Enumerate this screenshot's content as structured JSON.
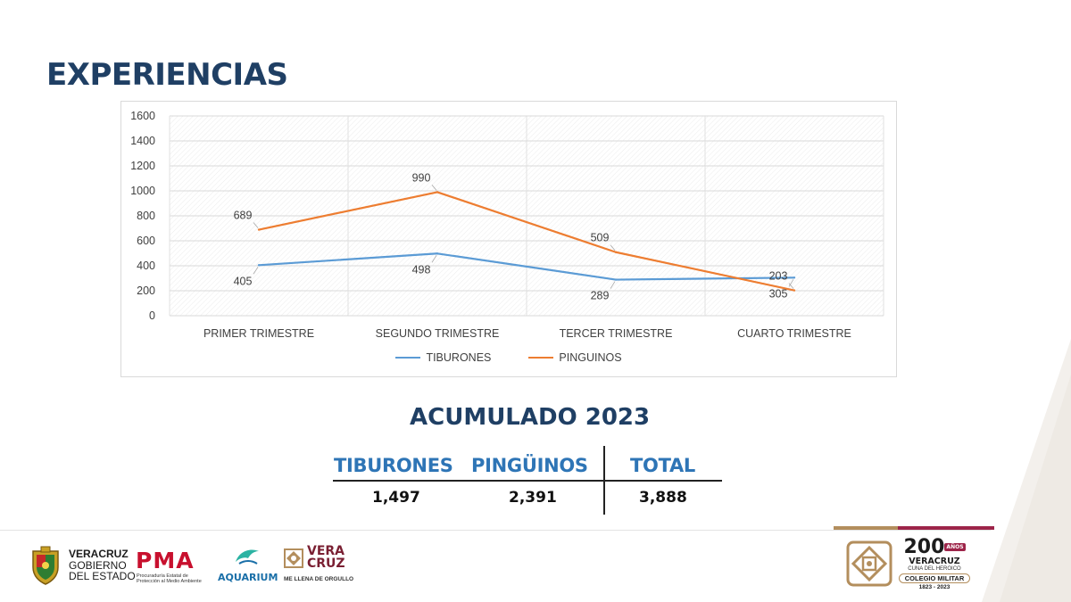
{
  "slide": {
    "title": "EXPERIENCIAS"
  },
  "chart_data": {
    "type": "line",
    "categories": [
      "PRIMER TRIMESTRE",
      "SEGUNDO TRIMESTRE",
      "TERCER TRIMESTRE",
      "CUARTO TRIMESTRE"
    ],
    "series": [
      {
        "name": "TIBURONES",
        "color": "#5b9bd5",
        "values": [
          405,
          498,
          289,
          305
        ]
      },
      {
        "name": "PINGUINOS",
        "color": "#ed7d31",
        "values": [
          689,
          990,
          509,
          203
        ]
      }
    ],
    "ylim": [
      0,
      1600
    ],
    "yticks": [
      0,
      200,
      400,
      600,
      800,
      1000,
      1200,
      1400,
      1600
    ],
    "grid": true,
    "legend": "bottom"
  },
  "accumulated": {
    "title": "ACUMULADO 2023",
    "headers": [
      "TIBURONES",
      "PINGÜINOS",
      "TOTAL"
    ],
    "values": [
      "1,497",
      "2,391",
      "3,888"
    ]
  },
  "footer": {
    "gov": {
      "line1": "VERACRUZ",
      "line2": "GOBIERNO",
      "line3": "DEL ESTADO"
    },
    "pma": {
      "name": "PMA",
      "subtitle": "Procuraduría Estatal de Protección al Medio Ambiente"
    },
    "aquarium": {
      "name": "AQUARIUM"
    },
    "veracruz": {
      "word1": "VERA",
      "word2": "CRUZ",
      "tagline": "ME LLENA DE ORGULLO"
    },
    "military": {
      "number": "200",
      "anos": "AÑOS",
      "line1": "VERACRUZ",
      "line2": "CUNA DEL HEROICO",
      "line3": "COLEGIO MILITAR",
      "line4": "1823 - 2023"
    },
    "colors": {
      "guinda": "#9d2449",
      "dorado": "#b38e5d"
    }
  }
}
